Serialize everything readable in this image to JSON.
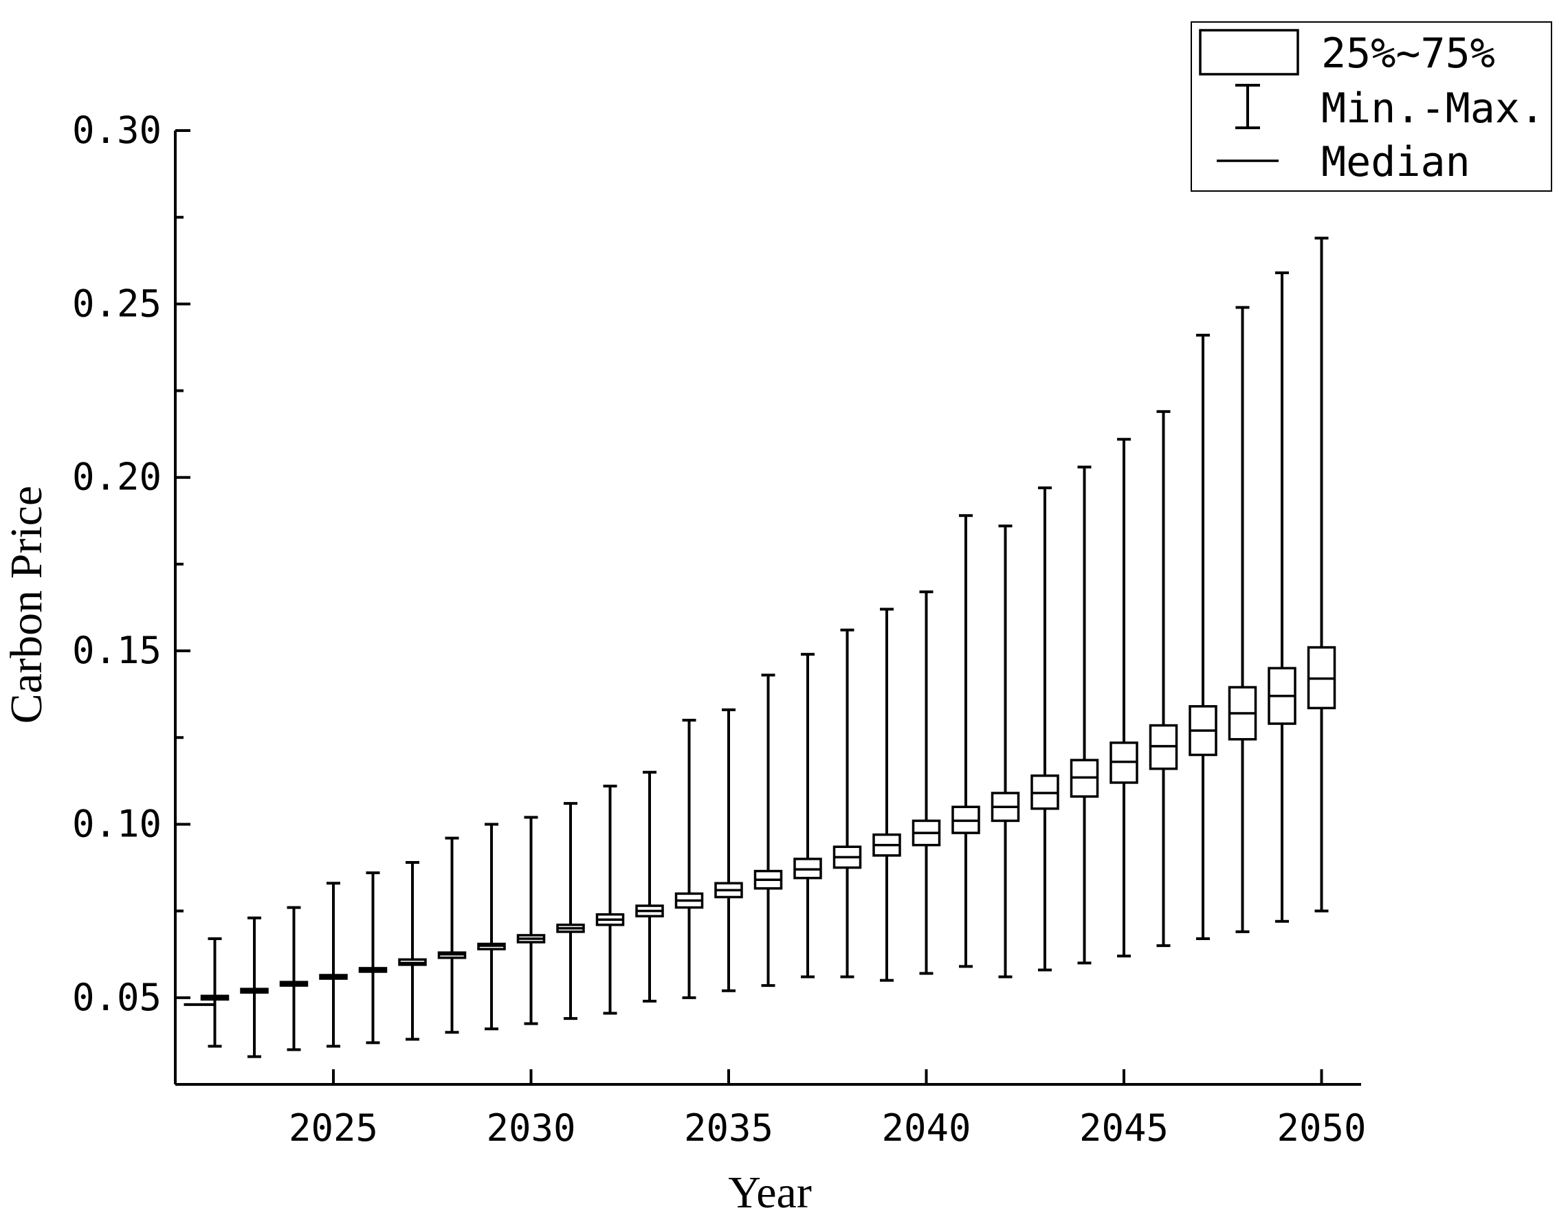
{
  "chart_data": {
    "type": "box",
    "xlabel": "Year",
    "ylabel": "Carbon Price",
    "xlim": [
      2021,
      2051
    ],
    "ylim": [
      0.025,
      0.3
    ],
    "x_ticks": [
      2025,
      2030,
      2035,
      2040,
      2045,
      2050
    ],
    "x_tick_labels": [
      "2025",
      "2030",
      "2035",
      "2040",
      "2045",
      "2050"
    ],
    "y_ticks": [
      0.05,
      0.1,
      0.15,
      0.2,
      0.25,
      0.3
    ],
    "y_tick_labels": [
      "0.05",
      "0.10",
      "0.15",
      "0.20",
      "0.25",
      "0.30"
    ],
    "grid": false,
    "legend_position": "top-right",
    "legend": {
      "box": "25%~75%",
      "whisker": "Min.-Max.",
      "median": "Median"
    },
    "initial_point": {
      "x": 2021.6,
      "y": 0.048
    },
    "boxes": [
      {
        "x": 2022,
        "min": 0.036,
        "q1": 0.0495,
        "median": 0.05,
        "q3": 0.0505,
        "max": 0.067
      },
      {
        "x": 2023,
        "min": 0.033,
        "q1": 0.0515,
        "median": 0.052,
        "q3": 0.0525,
        "max": 0.073
      },
      {
        "x": 2024,
        "min": 0.035,
        "q1": 0.0535,
        "median": 0.054,
        "q3": 0.0545,
        "max": 0.076
      },
      {
        "x": 2025,
        "min": 0.036,
        "q1": 0.0555,
        "median": 0.056,
        "q3": 0.0565,
        "max": 0.083
      },
      {
        "x": 2026,
        "min": 0.037,
        "q1": 0.0575,
        "median": 0.058,
        "q3": 0.0585,
        "max": 0.086
      },
      {
        "x": 2027,
        "min": 0.038,
        "q1": 0.0595,
        "median": 0.06,
        "q3": 0.061,
        "max": 0.089
      },
      {
        "x": 2028,
        "min": 0.04,
        "q1": 0.0615,
        "median": 0.0625,
        "q3": 0.063,
        "max": 0.096
      },
      {
        "x": 2029,
        "min": 0.041,
        "q1": 0.064,
        "median": 0.065,
        "q3": 0.0655,
        "max": 0.1
      },
      {
        "x": 2030,
        "min": 0.0425,
        "q1": 0.066,
        "median": 0.067,
        "q3": 0.068,
        "max": 0.102
      },
      {
        "x": 2031,
        "min": 0.044,
        "q1": 0.069,
        "median": 0.07,
        "q3": 0.071,
        "max": 0.106
      },
      {
        "x": 2032,
        "min": 0.0455,
        "q1": 0.071,
        "median": 0.0725,
        "q3": 0.074,
        "max": 0.111
      },
      {
        "x": 2033,
        "min": 0.049,
        "q1": 0.0735,
        "median": 0.075,
        "q3": 0.0765,
        "max": 0.115
      },
      {
        "x": 2034,
        "min": 0.05,
        "q1": 0.076,
        "median": 0.078,
        "q3": 0.08,
        "max": 0.13
      },
      {
        "x": 2035,
        "min": 0.052,
        "q1": 0.079,
        "median": 0.081,
        "q3": 0.083,
        "max": 0.133
      },
      {
        "x": 2036,
        "min": 0.0535,
        "q1": 0.0815,
        "median": 0.084,
        "q3": 0.0865,
        "max": 0.143
      },
      {
        "x": 2037,
        "min": 0.056,
        "q1": 0.0845,
        "median": 0.087,
        "q3": 0.09,
        "max": 0.149
      },
      {
        "x": 2038,
        "min": 0.056,
        "q1": 0.0875,
        "median": 0.0905,
        "q3": 0.0935,
        "max": 0.156
      },
      {
        "x": 2039,
        "min": 0.055,
        "q1": 0.091,
        "median": 0.094,
        "q3": 0.097,
        "max": 0.162
      },
      {
        "x": 2040,
        "min": 0.057,
        "q1": 0.094,
        "median": 0.0975,
        "q3": 0.101,
        "max": 0.167
      },
      {
        "x": 2041,
        "min": 0.059,
        "q1": 0.0975,
        "median": 0.101,
        "q3": 0.105,
        "max": 0.189
      },
      {
        "x": 2042,
        "min": 0.056,
        "q1": 0.101,
        "median": 0.105,
        "q3": 0.109,
        "max": 0.186
      },
      {
        "x": 2043,
        "min": 0.058,
        "q1": 0.1045,
        "median": 0.109,
        "q3": 0.114,
        "max": 0.197
      },
      {
        "x": 2044,
        "min": 0.06,
        "q1": 0.108,
        "median": 0.1135,
        "q3": 0.1185,
        "max": 0.203
      },
      {
        "x": 2045,
        "min": 0.062,
        "q1": 0.112,
        "median": 0.118,
        "q3": 0.1235,
        "max": 0.211
      },
      {
        "x": 2046,
        "min": 0.065,
        "q1": 0.116,
        "median": 0.1225,
        "q3": 0.1285,
        "max": 0.219
      },
      {
        "x": 2047,
        "min": 0.067,
        "q1": 0.12,
        "median": 0.127,
        "q3": 0.134,
        "max": 0.241
      },
      {
        "x": 2048,
        "min": 0.069,
        "q1": 0.1245,
        "median": 0.132,
        "q3": 0.1395,
        "max": 0.249
      },
      {
        "x": 2049,
        "min": 0.072,
        "q1": 0.129,
        "median": 0.137,
        "q3": 0.145,
        "max": 0.259
      },
      {
        "x": 2050,
        "min": 0.075,
        "q1": 0.1335,
        "median": 0.142,
        "q3": 0.151,
        "max": 0.269
      }
    ]
  }
}
